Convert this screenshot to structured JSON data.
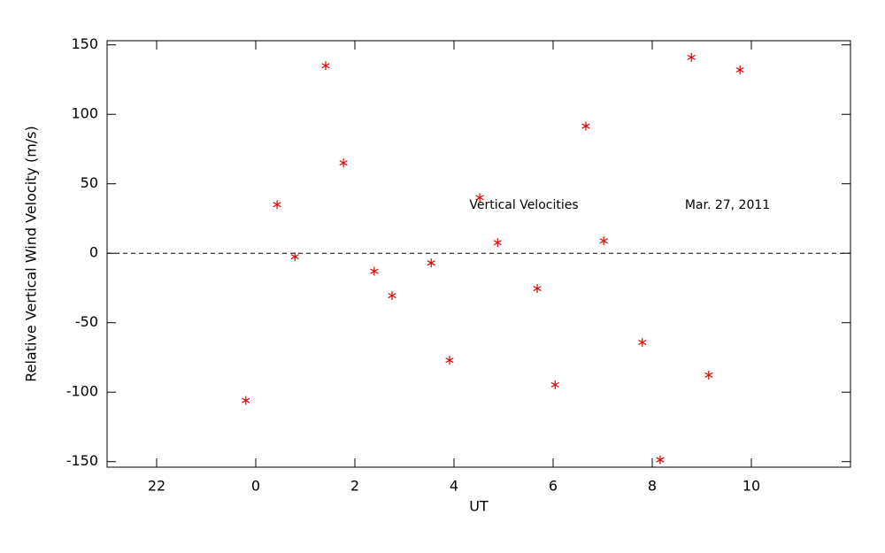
{
  "chart_data": {
    "type": "scatter",
    "xlabel": "UT",
    "ylabel": "Relative Vertical Wind Velocity (m/s)",
    "annotations": [
      "Vertical Velocities",
      "Mar. 27, 2011"
    ],
    "x": [
      -0.2,
      0.43,
      0.79,
      1.41,
      1.77,
      2.39,
      2.75,
      3.54,
      3.91,
      4.52,
      4.88,
      5.68,
      6.04,
      6.66,
      7.02,
      7.8,
      8.16,
      8.79,
      9.14,
      9.77
    ],
    "values": [
      -106,
      35,
      -2.5,
      135,
      65,
      -13,
      -30.5,
      -7,
      -77,
      40,
      7.6,
      -25.4,
      -94.7,
      91.5,
      8.9,
      -64.2,
      -148.7,
      141,
      -87.7,
      132
    ],
    "color": "#e00000",
    "xlim": [
      -3,
      12
    ],
    "xticks": [
      {
        "value": -2,
        "label": "22"
      },
      0,
      2,
      4,
      6,
      8,
      10
    ],
    "ylim": [
      -154,
      153
    ],
    "yticks": [
      -150,
      -100,
      -50,
      0,
      50,
      100,
      150
    ],
    "reference_line": 0
  }
}
